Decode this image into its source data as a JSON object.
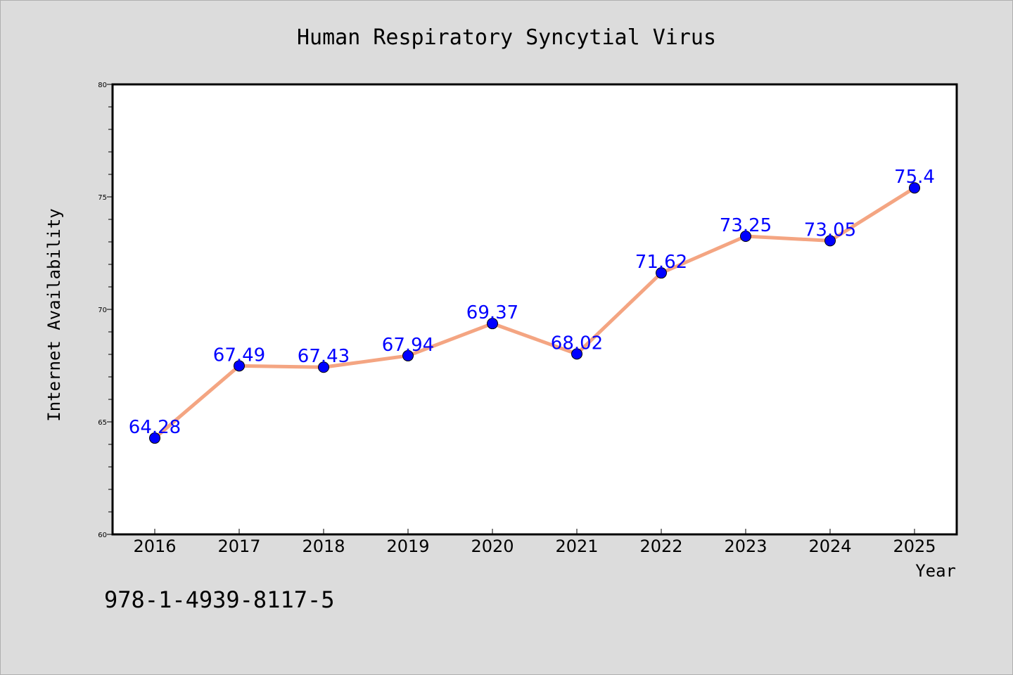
{
  "chart_data": {
    "type": "line",
    "title": "Human Respiratory Syncytial Virus",
    "xlabel": "Year",
    "ylabel": "Internet Availability",
    "categories": [
      "2016",
      "2017",
      "2018",
      "2019",
      "2020",
      "2021",
      "2022",
      "2023",
      "2024",
      "2025"
    ],
    "series": [
      {
        "values": [
          64.28,
          67.49,
          67.43,
          67.94,
          69.37,
          68.02,
          71.62,
          73.25,
          73.05,
          75.4
        ],
        "labels": [
          "64.28",
          "67.49",
          "67.43",
          "67.94",
          "69.37",
          "68.02",
          "71.62",
          "73.25",
          "73.05",
          "75.4"
        ],
        "line_color": "#f4a582",
        "marker_color": "#0000ff"
      }
    ],
    "ylim": [
      60,
      80
    ],
    "yticks": [
      "60",
      "65",
      "70",
      "75",
      "80"
    ],
    "grid": false,
    "legend": "none"
  },
  "footer_text": "978-1-4939-8117-5",
  "colors": {
    "background": "#dcdcdc",
    "plot_background": "#ffffff",
    "data_label": "#0000ff"
  }
}
